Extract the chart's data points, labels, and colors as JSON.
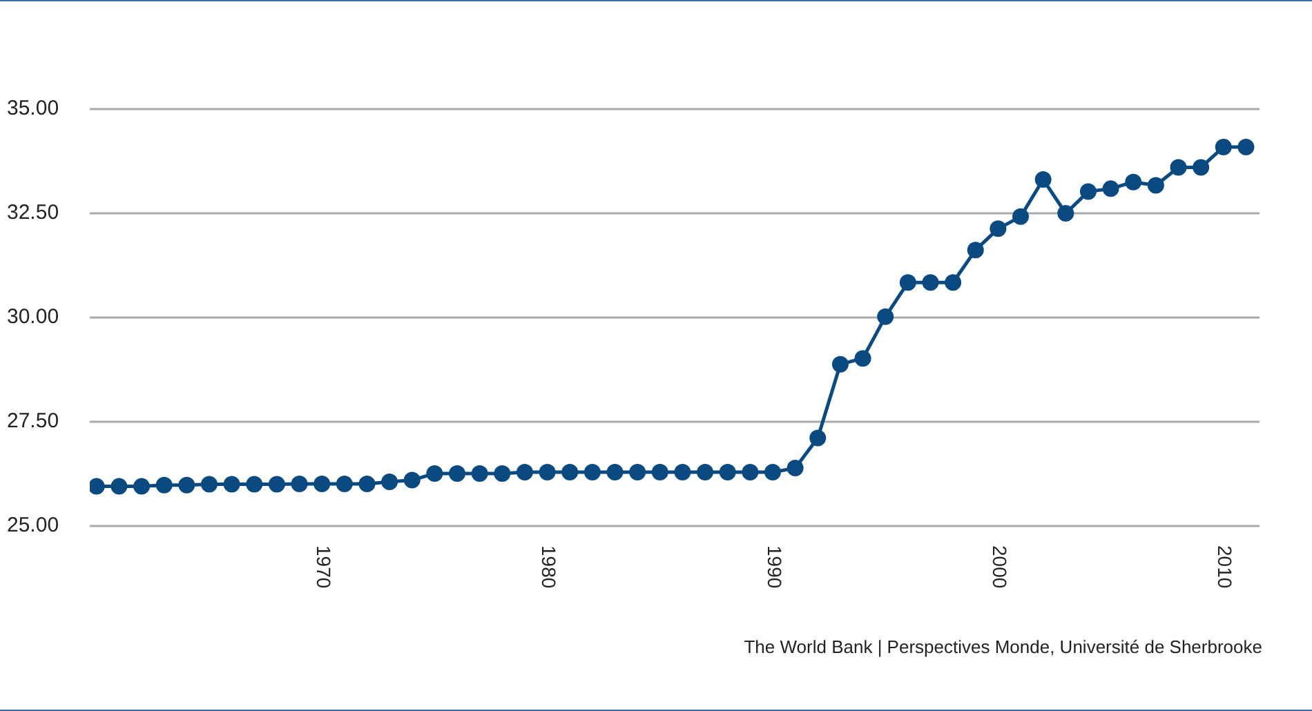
{
  "chart_data": {
    "type": "line",
    "x": [
      1960,
      1961,
      1962,
      1963,
      1964,
      1965,
      1966,
      1967,
      1968,
      1969,
      1970,
      1971,
      1972,
      1973,
      1974,
      1975,
      1976,
      1977,
      1978,
      1979,
      1980,
      1981,
      1982,
      1983,
      1984,
      1985,
      1986,
      1987,
      1988,
      1989,
      1990,
      1991,
      1992,
      1993,
      1994,
      1995,
      1996,
      1997,
      1998,
      1999,
      2000,
      2001,
      2002,
      2003,
      2004,
      2005,
      2006,
      2007,
      2008,
      2009,
      2010,
      2011
    ],
    "series": [
      {
        "color": "#0b4a80",
        "values": [
          25.95,
          25.95,
          25.95,
          25.98,
          25.98,
          26.0,
          26.0,
          26.0,
          26.0,
          26.01,
          26.01,
          26.01,
          26.01,
          26.06,
          26.1,
          26.26,
          26.26,
          26.26,
          26.26,
          26.29,
          26.29,
          26.29,
          26.29,
          26.29,
          26.29,
          26.29,
          26.29,
          26.29,
          26.29,
          26.29,
          26.29,
          26.39,
          27.11,
          28.88,
          29.02,
          30.02,
          30.84,
          30.84,
          30.84,
          31.62,
          32.13,
          32.42,
          33.31,
          32.5,
          33.02,
          33.09,
          33.25,
          33.17,
          33.6,
          33.6,
          34.09,
          34.09
        ]
      }
    ],
    "xlim": [
      1959.7,
      2011.6
    ],
    "xticks": [
      1970,
      1980,
      1990,
      2000,
      2010
    ],
    "ylim": [
      25,
      35
    ],
    "yticks": [
      {
        "value": 25,
        "label": "25.00"
      },
      {
        "value": 27.5,
        "label": "27.50"
      },
      {
        "value": 30,
        "label": "30.00"
      },
      {
        "value": 32.5,
        "label": "32.50"
      },
      {
        "value": 35,
        "label": "35.00"
      }
    ],
    "grid": "y",
    "marker": "circle",
    "line_style": "solid",
    "annotations": [
      "The World Bank | Perspectives Monde, Université de Sherbrooke"
    ]
  }
}
